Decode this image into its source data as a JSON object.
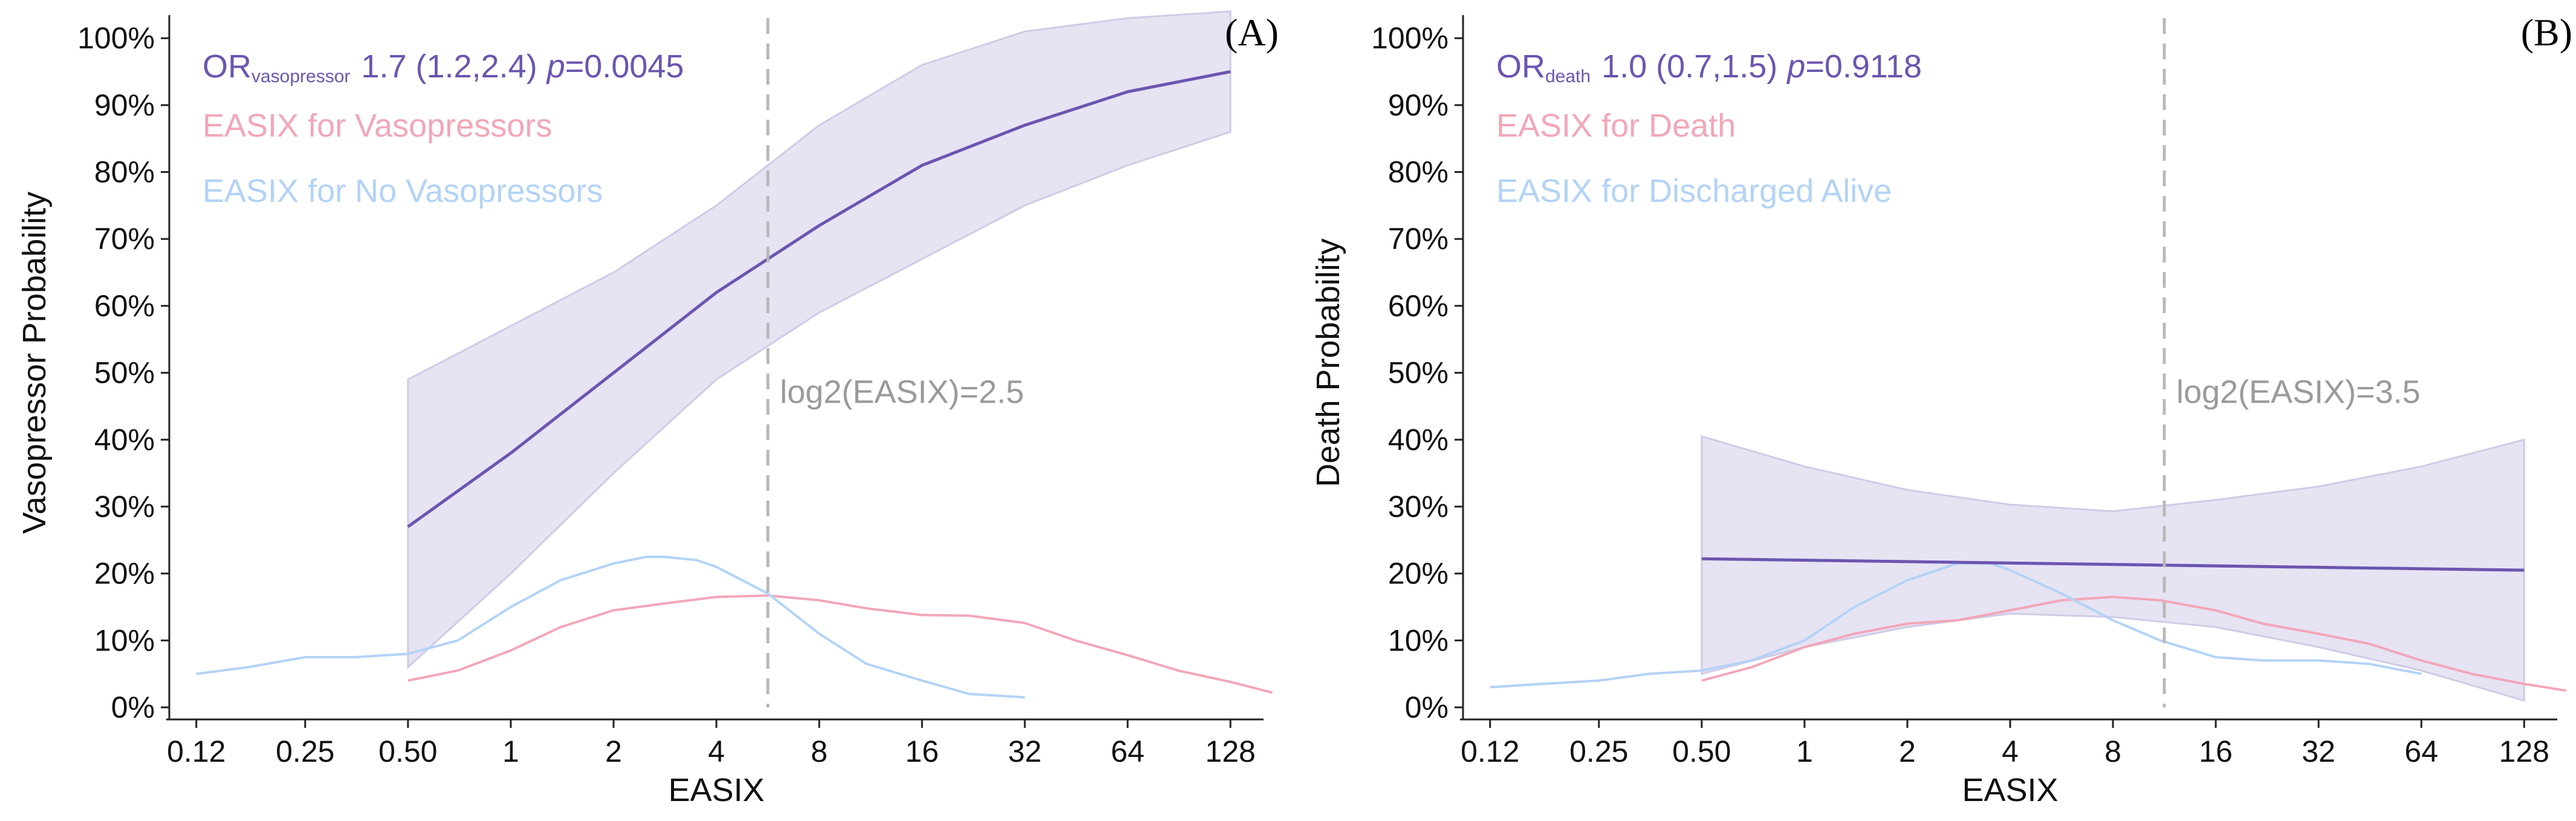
{
  "colors": {
    "model": "#6b55b0",
    "band": "#e6e3f3",
    "band_edge": "#cfcbe6",
    "positive_density": "#f2a7b8",
    "negative_density": "#b3d3f6",
    "vline": "#b8b8b8",
    "axis": "#222222"
  },
  "chart_data": [
    {
      "type": "line",
      "panel_tag": "(A)",
      "xlabel": "EASIX",
      "ylabel": "Vasopressor Probability",
      "x_scale": "log2",
      "xlim": [
        0.1,
        160
      ],
      "ylim": [
        0,
        1.03
      ],
      "x_ticks": [
        0.12,
        0.25,
        0.5,
        1,
        2,
        4,
        8,
        16,
        32,
        64,
        128
      ],
      "x_tick_labels": [
        "0.12",
        "0.25",
        "0.50",
        "1",
        "2",
        "4",
        "8",
        "16",
        "32",
        "64",
        "128"
      ],
      "y_ticks": [
        0,
        0.1,
        0.2,
        0.3,
        0.4,
        0.5,
        0.6,
        0.7,
        0.8,
        0.9,
        1.0
      ],
      "y_tick_labels": [
        "0%",
        "10%",
        "20%",
        "30%",
        "40%",
        "50%",
        "60%",
        "70%",
        "80%",
        "90%",
        "100%"
      ],
      "stat": {
        "or_prefix": "OR",
        "or_sub": "vasopressor",
        "or_value": "1.7 (1.2,2.4)",
        "p_label": "p",
        "p_value": "=0.0045"
      },
      "legend": [
        "EASIX for Vasopressors",
        "EASIX for No Vasopressors"
      ],
      "cutoff": {
        "x": 5.66,
        "label": "log2(EASIX)=2.5"
      },
      "series": [
        {
          "name": "Predicted probability",
          "x": [
            0.5,
            1,
            2,
            4,
            8,
            16,
            32,
            64,
            128
          ],
          "values": [
            0.27,
            0.38,
            0.5,
            0.62,
            0.72,
            0.81,
            0.87,
            0.92,
            0.95
          ]
        },
        {
          "name": "CI upper",
          "x": [
            0.5,
            1,
            2,
            4,
            8,
            16,
            32,
            64,
            128
          ],
          "values": [
            0.49,
            0.57,
            0.65,
            0.75,
            0.87,
            0.96,
            1.01,
            1.03,
            1.04
          ]
        },
        {
          "name": "CI lower",
          "x": [
            0.5,
            1,
            2,
            4,
            8,
            16,
            32,
            64,
            128
          ],
          "values": [
            0.06,
            0.2,
            0.35,
            0.49,
            0.59,
            0.67,
            0.75,
            0.81,
            0.86
          ]
        },
        {
          "name": "EASIX for Vasopressors",
          "x": [
            0.5,
            0.7,
            1,
            1.4,
            2,
            2.8,
            4,
            5.66,
            8,
            11,
            16,
            22,
            32,
            45,
            64,
            90,
            128,
            170
          ],
          "values": [
            0.04,
            0.055,
            0.085,
            0.12,
            0.145,
            0.155,
            0.165,
            0.167,
            0.16,
            0.148,
            0.138,
            0.137,
            0.126,
            0.1,
            0.078,
            0.055,
            0.038,
            0.022
          ]
        },
        {
          "name": "EASIX for No Vasopressors",
          "x": [
            0.12,
            0.17,
            0.25,
            0.35,
            0.5,
            0.7,
            1,
            1.4,
            2,
            2.5,
            2.8,
            3.5,
            4,
            5.66,
            8,
            11,
            16,
            22,
            32
          ],
          "values": [
            0.05,
            0.06,
            0.075,
            0.075,
            0.08,
            0.1,
            0.15,
            0.19,
            0.215,
            0.225,
            0.225,
            0.22,
            0.21,
            0.17,
            0.11,
            0.065,
            0.04,
            0.02,
            0.015
          ]
        }
      ]
    },
    {
      "type": "line",
      "panel_tag": "(B)",
      "xlabel": "EASIX",
      "ylabel": "Death Probability",
      "x_scale": "log2",
      "xlim": [
        0.1,
        160
      ],
      "ylim": [
        0,
        1.03
      ],
      "x_ticks": [
        0.12,
        0.25,
        0.5,
        1,
        2,
        4,
        8,
        16,
        32,
        64,
        128
      ],
      "x_tick_labels": [
        "0.12",
        "0.25",
        "0.50",
        "1",
        "2",
        "4",
        "8",
        "16",
        "32",
        "64",
        "128"
      ],
      "y_ticks": [
        0,
        0.1,
        0.2,
        0.3,
        0.4,
        0.5,
        0.6,
        0.7,
        0.8,
        0.9,
        1.0
      ],
      "y_tick_labels": [
        "0%",
        "10%",
        "20%",
        "30%",
        "40%",
        "50%",
        "60%",
        "70%",
        "80%",
        "90%",
        "100%"
      ],
      "stat": {
        "or_prefix": "OR",
        "or_sub": "death",
        "or_value": "1.0 (0.7,1.5)",
        "p_label": "p",
        "p_value": "=0.9118"
      },
      "legend": [
        "EASIX for Death",
        "EASIX for Discharged Alive"
      ],
      "cutoff": {
        "x": 11.31,
        "label": "log2(EASIX)=3.5"
      },
      "series": [
        {
          "name": "Predicted probability",
          "x": [
            0.5,
            128
          ],
          "values": [
            0.222,
            0.205
          ]
        },
        {
          "name": "CI upper",
          "x": [
            0.5,
            1,
            2,
            4,
            8,
            16,
            32,
            64,
            128
          ],
          "values": [
            0.405,
            0.36,
            0.325,
            0.303,
            0.293,
            0.31,
            0.33,
            0.36,
            0.4
          ]
        },
        {
          "name": "CI lower",
          "x": [
            0.5,
            1,
            2,
            4,
            8,
            16,
            32,
            64,
            128
          ],
          "values": [
            0.05,
            0.09,
            0.12,
            0.14,
            0.135,
            0.12,
            0.09,
            0.055,
            0.01
          ]
        },
        {
          "name": "EASIX for Death",
          "x": [
            0.5,
            0.7,
            1,
            1.4,
            2,
            2.8,
            4,
            5.66,
            8,
            11,
            16,
            22,
            32,
            45,
            64,
            90,
            128,
            170
          ],
          "values": [
            0.04,
            0.06,
            0.09,
            0.11,
            0.125,
            0.13,
            0.145,
            0.16,
            0.165,
            0.16,
            0.145,
            0.125,
            0.11,
            0.095,
            0.07,
            0.05,
            0.035,
            0.025
          ]
        },
        {
          "name": "EASIX for Discharged Alive",
          "x": [
            0.12,
            0.17,
            0.25,
            0.35,
            0.5,
            0.7,
            1,
            1.4,
            2,
            2.8,
            3.5,
            4,
            5.66,
            8,
            11,
            16,
            22,
            32,
            45,
            64
          ],
          "values": [
            0.03,
            0.035,
            0.04,
            0.05,
            0.055,
            0.07,
            0.1,
            0.15,
            0.19,
            0.215,
            0.215,
            0.205,
            0.17,
            0.13,
            0.1,
            0.075,
            0.07,
            0.07,
            0.065,
            0.05
          ]
        }
      ]
    }
  ]
}
